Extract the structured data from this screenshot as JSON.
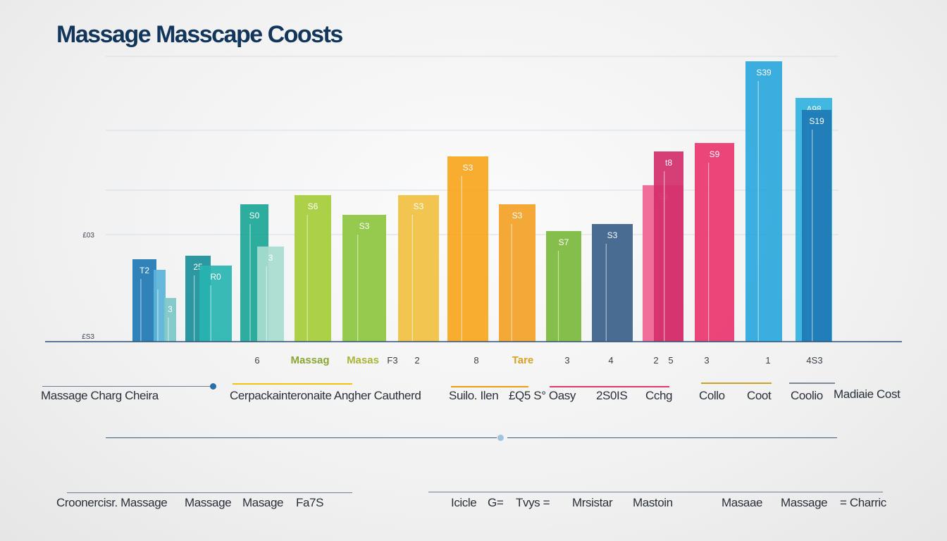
{
  "title": "Massage Masscape Coosts",
  "colors": {
    "title": "#12355b",
    "axis": "#2b4f78",
    "ytick": "#3d4552",
    "value_label": "#ffffff",
    "bars": [
      "#1f78b4",
      "#5ab4d9",
      "#7cc8c8",
      "#1a8f9a",
      "#28b4b0",
      "#7dd3c8",
      "#1aa696",
      "#55c4b4",
      "#a8dccf",
      "#8ab832",
      "#a6cc3a",
      "#8cc63f",
      "#e8c42a",
      "#f0c040",
      "#f7a51e",
      "#f4b12a",
      "#f3a127",
      "#f39a22",
      "#f7ab25",
      "#7cb83c",
      "#8dc540",
      "#3a5f8a",
      "#2c4a70",
      "#f06292",
      "#d32f6a",
      "#e9356f",
      "#2ba7dc",
      "#31b3e0"
    ]
  },
  "chart_data": {
    "type": "bar",
    "y_tick_labels": [
      "£03",
      "£S3"
    ],
    "x_tick_labels": [
      "6",
      "Massag",
      "Masas",
      "F3",
      "2",
      "8",
      "Tare",
      "3",
      "4",
      "2",
      "5",
      "3",
      "1",
      "4S3"
    ],
    "bars": [
      {
        "value": 117,
        "label": "T2"
      },
      {
        "value": 102,
        "label": ""
      },
      {
        "value": 62,
        "label": "3"
      },
      {
        "value": 122,
        "label": "25"
      },
      {
        "value": 108,
        "label": "R0"
      },
      {
        "value": 195,
        "label": "S0"
      },
      {
        "value": 135,
        "label": "3"
      },
      {
        "value": 208,
        "label": "S6"
      },
      {
        "value": 180,
        "label": "S3"
      },
      {
        "value": 208,
        "label": "S3"
      },
      {
        "value": 263,
        "label": "S3"
      },
      {
        "value": 195,
        "label": "S3"
      },
      {
        "value": 157,
        "label": "S7"
      },
      {
        "value": 167,
        "label": "S3"
      },
      {
        "value": 222,
        "label": "S3"
      },
      {
        "value": 270,
        "label": "t8"
      },
      {
        "value": 282,
        "label": "S9"
      },
      {
        "value": 398,
        "label": "S39"
      },
      {
        "value": 346,
        "label": "A98"
      },
      {
        "value": 329,
        "label": "S19"
      }
    ]
  },
  "legend_row_1": {
    "item_1": "Massage Charg Cheira",
    "item_2": "Cerpackainteronaite Angher Cautherd",
    "item_3": "Suilo. Ilen",
    "item_4": "£Q5 S° Oasy",
    "item_5": "2S0IS",
    "item_6": "Cchg",
    "item_7": "Collo",
    "item_8": "Coot",
    "item_9": "Coolio",
    "item_10": "Madiaie Cost"
  },
  "legend_row_2": {
    "item_1": "Croonercisr. Massage",
    "item_2": "Massage",
    "item_3": "Masage",
    "item_4": "Fa7S",
    "item_5": "Icicle",
    "item_6": "G=",
    "item_7": "Tvys =",
    "item_8": "Mrsistar",
    "item_9": "Mastoin",
    "item_10": "Masaae",
    "item_11": "Massage",
    "item_12": "= Charric"
  }
}
